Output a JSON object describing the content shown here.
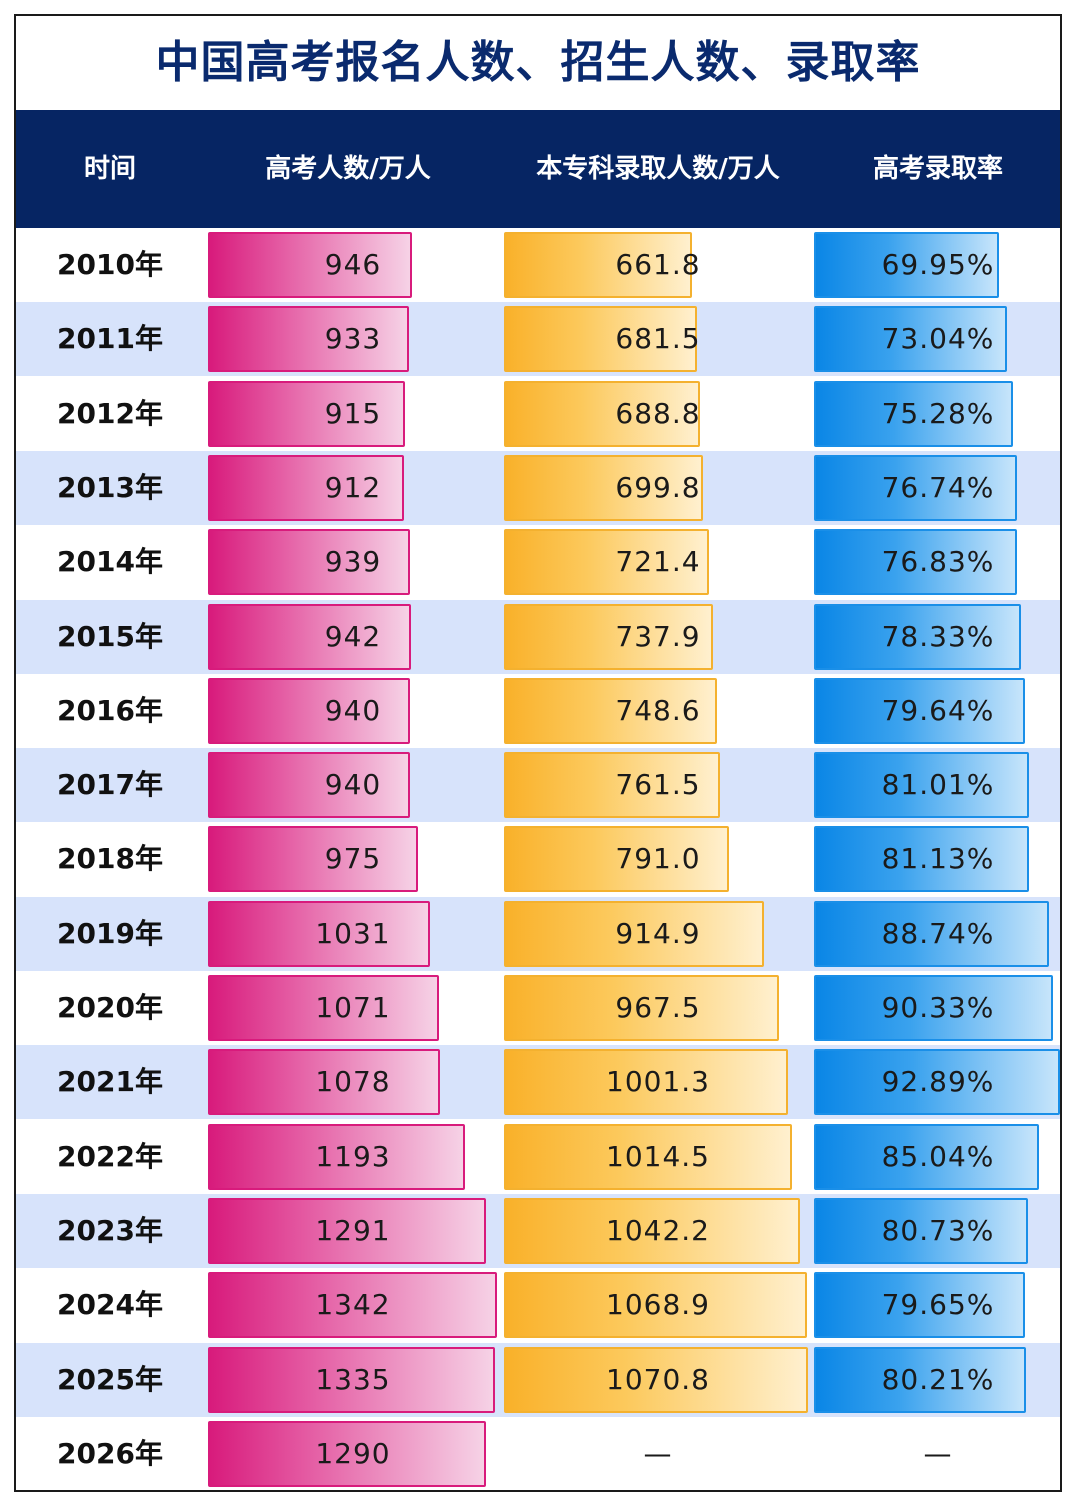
{
  "title": "中国高考报名人数、招生人数、录取率",
  "headers": {
    "time": "时间",
    "applicants": "高考人数/万人",
    "admitted": "本专科录取人数/万人",
    "rate": "高考录取率"
  },
  "empty_mark": "—",
  "colors": {
    "header_bg": "#062563",
    "title": "#0a2a6e",
    "alt_row": "#d7e3fb",
    "applicants": "#d81b7c",
    "admitted": "#f9b12a",
    "rate": "#0a86e6"
  },
  "chart_data": {
    "type": "table",
    "columns": [
      "时间",
      "高考人数/万人",
      "本专科录取人数/万人",
      "高考录取率"
    ],
    "rows": [
      {
        "year": "2010年",
        "applicants": 946,
        "applicants_label": "946",
        "admitted": 661.8,
        "admitted_label": "661.8",
        "rate": 69.95,
        "rate_label": "69.95%"
      },
      {
        "year": "2011年",
        "applicants": 933,
        "applicants_label": "933",
        "admitted": 681.5,
        "admitted_label": "681.5",
        "rate": 73.04,
        "rate_label": "73.04%"
      },
      {
        "year": "2012年",
        "applicants": 915,
        "applicants_label": "915",
        "admitted": 688.8,
        "admitted_label": "688.8",
        "rate": 75.28,
        "rate_label": "75.28%"
      },
      {
        "year": "2013年",
        "applicants": 912,
        "applicants_label": "912",
        "admitted": 699.8,
        "admitted_label": "699.8",
        "rate": 76.74,
        "rate_label": "76.74%"
      },
      {
        "year": "2014年",
        "applicants": 939,
        "applicants_label": "939",
        "admitted": 721.4,
        "admitted_label": "721.4",
        "rate": 76.83,
        "rate_label": "76.83%"
      },
      {
        "year": "2015年",
        "applicants": 942,
        "applicants_label": "942",
        "admitted": 737.9,
        "admitted_label": "737.9",
        "rate": 78.33,
        "rate_label": "78.33%"
      },
      {
        "year": "2016年",
        "applicants": 940,
        "applicants_label": "940",
        "admitted": 748.6,
        "admitted_label": "748.6",
        "rate": 79.64,
        "rate_label": "79.64%"
      },
      {
        "year": "2017年",
        "applicants": 940,
        "applicants_label": "940",
        "admitted": 761.5,
        "admitted_label": "761.5",
        "rate": 81.01,
        "rate_label": "81.01%"
      },
      {
        "year": "2018年",
        "applicants": 975,
        "applicants_label": "975",
        "admitted": 791.0,
        "admitted_label": "791.0",
        "rate": 81.13,
        "rate_label": "81.13%"
      },
      {
        "year": "2019年",
        "applicants": 1031,
        "applicants_label": "1031",
        "admitted": 914.9,
        "admitted_label": "914.9",
        "rate": 88.74,
        "rate_label": "88.74%"
      },
      {
        "year": "2020年",
        "applicants": 1071,
        "applicants_label": "1071",
        "admitted": 967.5,
        "admitted_label": "967.5",
        "rate": 90.33,
        "rate_label": "90.33%"
      },
      {
        "year": "2021年",
        "applicants": 1078,
        "applicants_label": "1078",
        "admitted": 1001.3,
        "admitted_label": "1001.3",
        "rate": 92.89,
        "rate_label": "92.89%"
      },
      {
        "year": "2022年",
        "applicants": 1193,
        "applicants_label": "1193",
        "admitted": 1014.5,
        "admitted_label": "1014.5",
        "rate": 85.04,
        "rate_label": "85.04%"
      },
      {
        "year": "2023年",
        "applicants": 1291,
        "applicants_label": "1291",
        "admitted": 1042.2,
        "admitted_label": "1042.2",
        "rate": 80.73,
        "rate_label": "80.73%"
      },
      {
        "year": "2024年",
        "applicants": 1342,
        "applicants_label": "1342",
        "admitted": 1068.9,
        "admitted_label": "1068.9",
        "rate": 79.65,
        "rate_label": "79.65%"
      },
      {
        "year": "2025年",
        "applicants": 1335,
        "applicants_label": "1335",
        "admitted": 1070.8,
        "admitted_label": "1070.8",
        "rate": 80.21,
        "rate_label": "80.21%"
      },
      {
        "year": "2026年",
        "applicants": 1290,
        "applicants_label": "1290",
        "admitted": null,
        "admitted_label": "—",
        "rate": null,
        "rate_label": "—"
      }
    ]
  }
}
